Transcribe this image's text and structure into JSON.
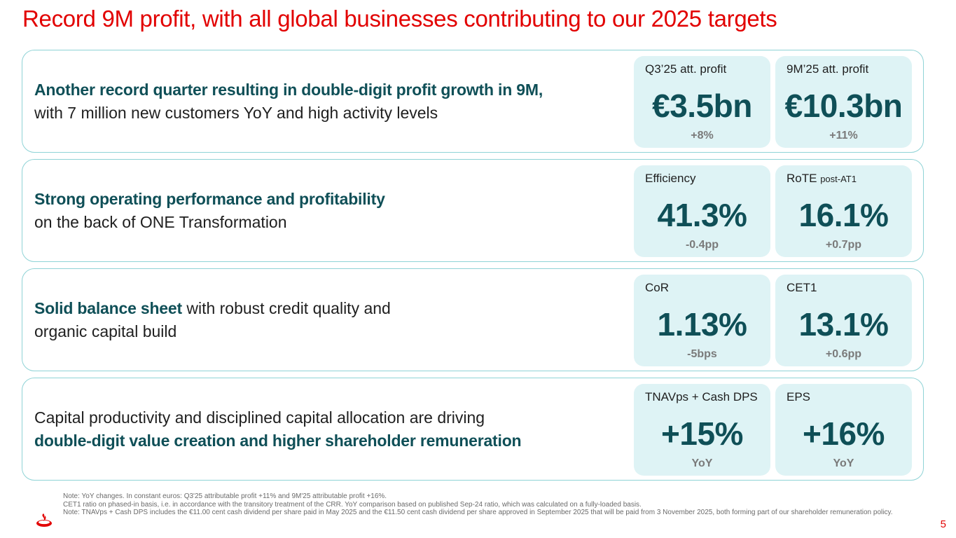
{
  "title": "Record 9M profit, with all global businesses contributing to our 2025 targets",
  "rows": [
    {
      "text_bold": "Another record quarter resulting in double-digit profit growth in 9M,",
      "text_regular": "with 7 million new customers YoY and high activity levels",
      "kpis": [
        {
          "label": "Q3’25 att. profit",
          "label_small": "",
          "value": "€3.5bn",
          "change": "+8%"
        },
        {
          "label": "9M’25 att. profit",
          "label_small": "",
          "value": "€10.3bn",
          "change": "+11%"
        }
      ]
    },
    {
      "text_bold": "Strong operating performance and profitability",
      "text_regular": "on the back of ONE Transformation",
      "kpis": [
        {
          "label": "Efficiency",
          "label_small": "",
          "value": "41.3%",
          "change": "-0.4pp"
        },
        {
          "label": "RoTE",
          "label_small": "post-AT1",
          "value": "16.1%",
          "change": "+0.7pp"
        }
      ]
    },
    {
      "text_bold": "Solid balance sheet",
      "text_regular": " with robust credit quality and organic capital build",
      "kpis": [
        {
          "label": "CoR",
          "label_small": "",
          "value": "1.13%",
          "change": "-5bps"
        },
        {
          "label": "CET1",
          "label_small": "",
          "value": "13.1%",
          "change": "+0.6pp"
        }
      ]
    },
    {
      "text_regular": "Capital productivity and disciplined capital allocation are driving",
      "text_bold": "double-digit value creation and higher shareholder remuneration",
      "kpis": [
        {
          "label": "TNAVps + Cash DPS",
          "label_small": "",
          "value": "+15%",
          "change": "YoY"
        },
        {
          "label": "EPS",
          "label_small": "",
          "value": "+16%",
          "change": "YoY"
        }
      ]
    }
  ],
  "notes": [
    "Note: YoY changes. In constant euros: Q3'25 attributable profit +11% and 9M'25 attributable profit +16%.",
    "CET1 ratio on phased-in basis, i.e. in accordance with the transitory treatment of the CRR. YoY comparison based on published Sep-24 ratio, which was calculated on a fully-loaded basis.",
    "Note: TNAVps + Cash DPS includes the €11.00 cent cash dividend per share paid in May 2025 and the €11.50 cent cash dividend per share approved in September 2025 that will be paid from 3 November 2025, both forming part of our shareholder remuneration policy."
  ],
  "page_number": "5",
  "logo_icon": "flame-logo-icon",
  "colors": {
    "title_red": "#e20000",
    "teal_dark": "#0f4f57",
    "card_bg": "#def3f5",
    "border": "#8fd3d6"
  }
}
